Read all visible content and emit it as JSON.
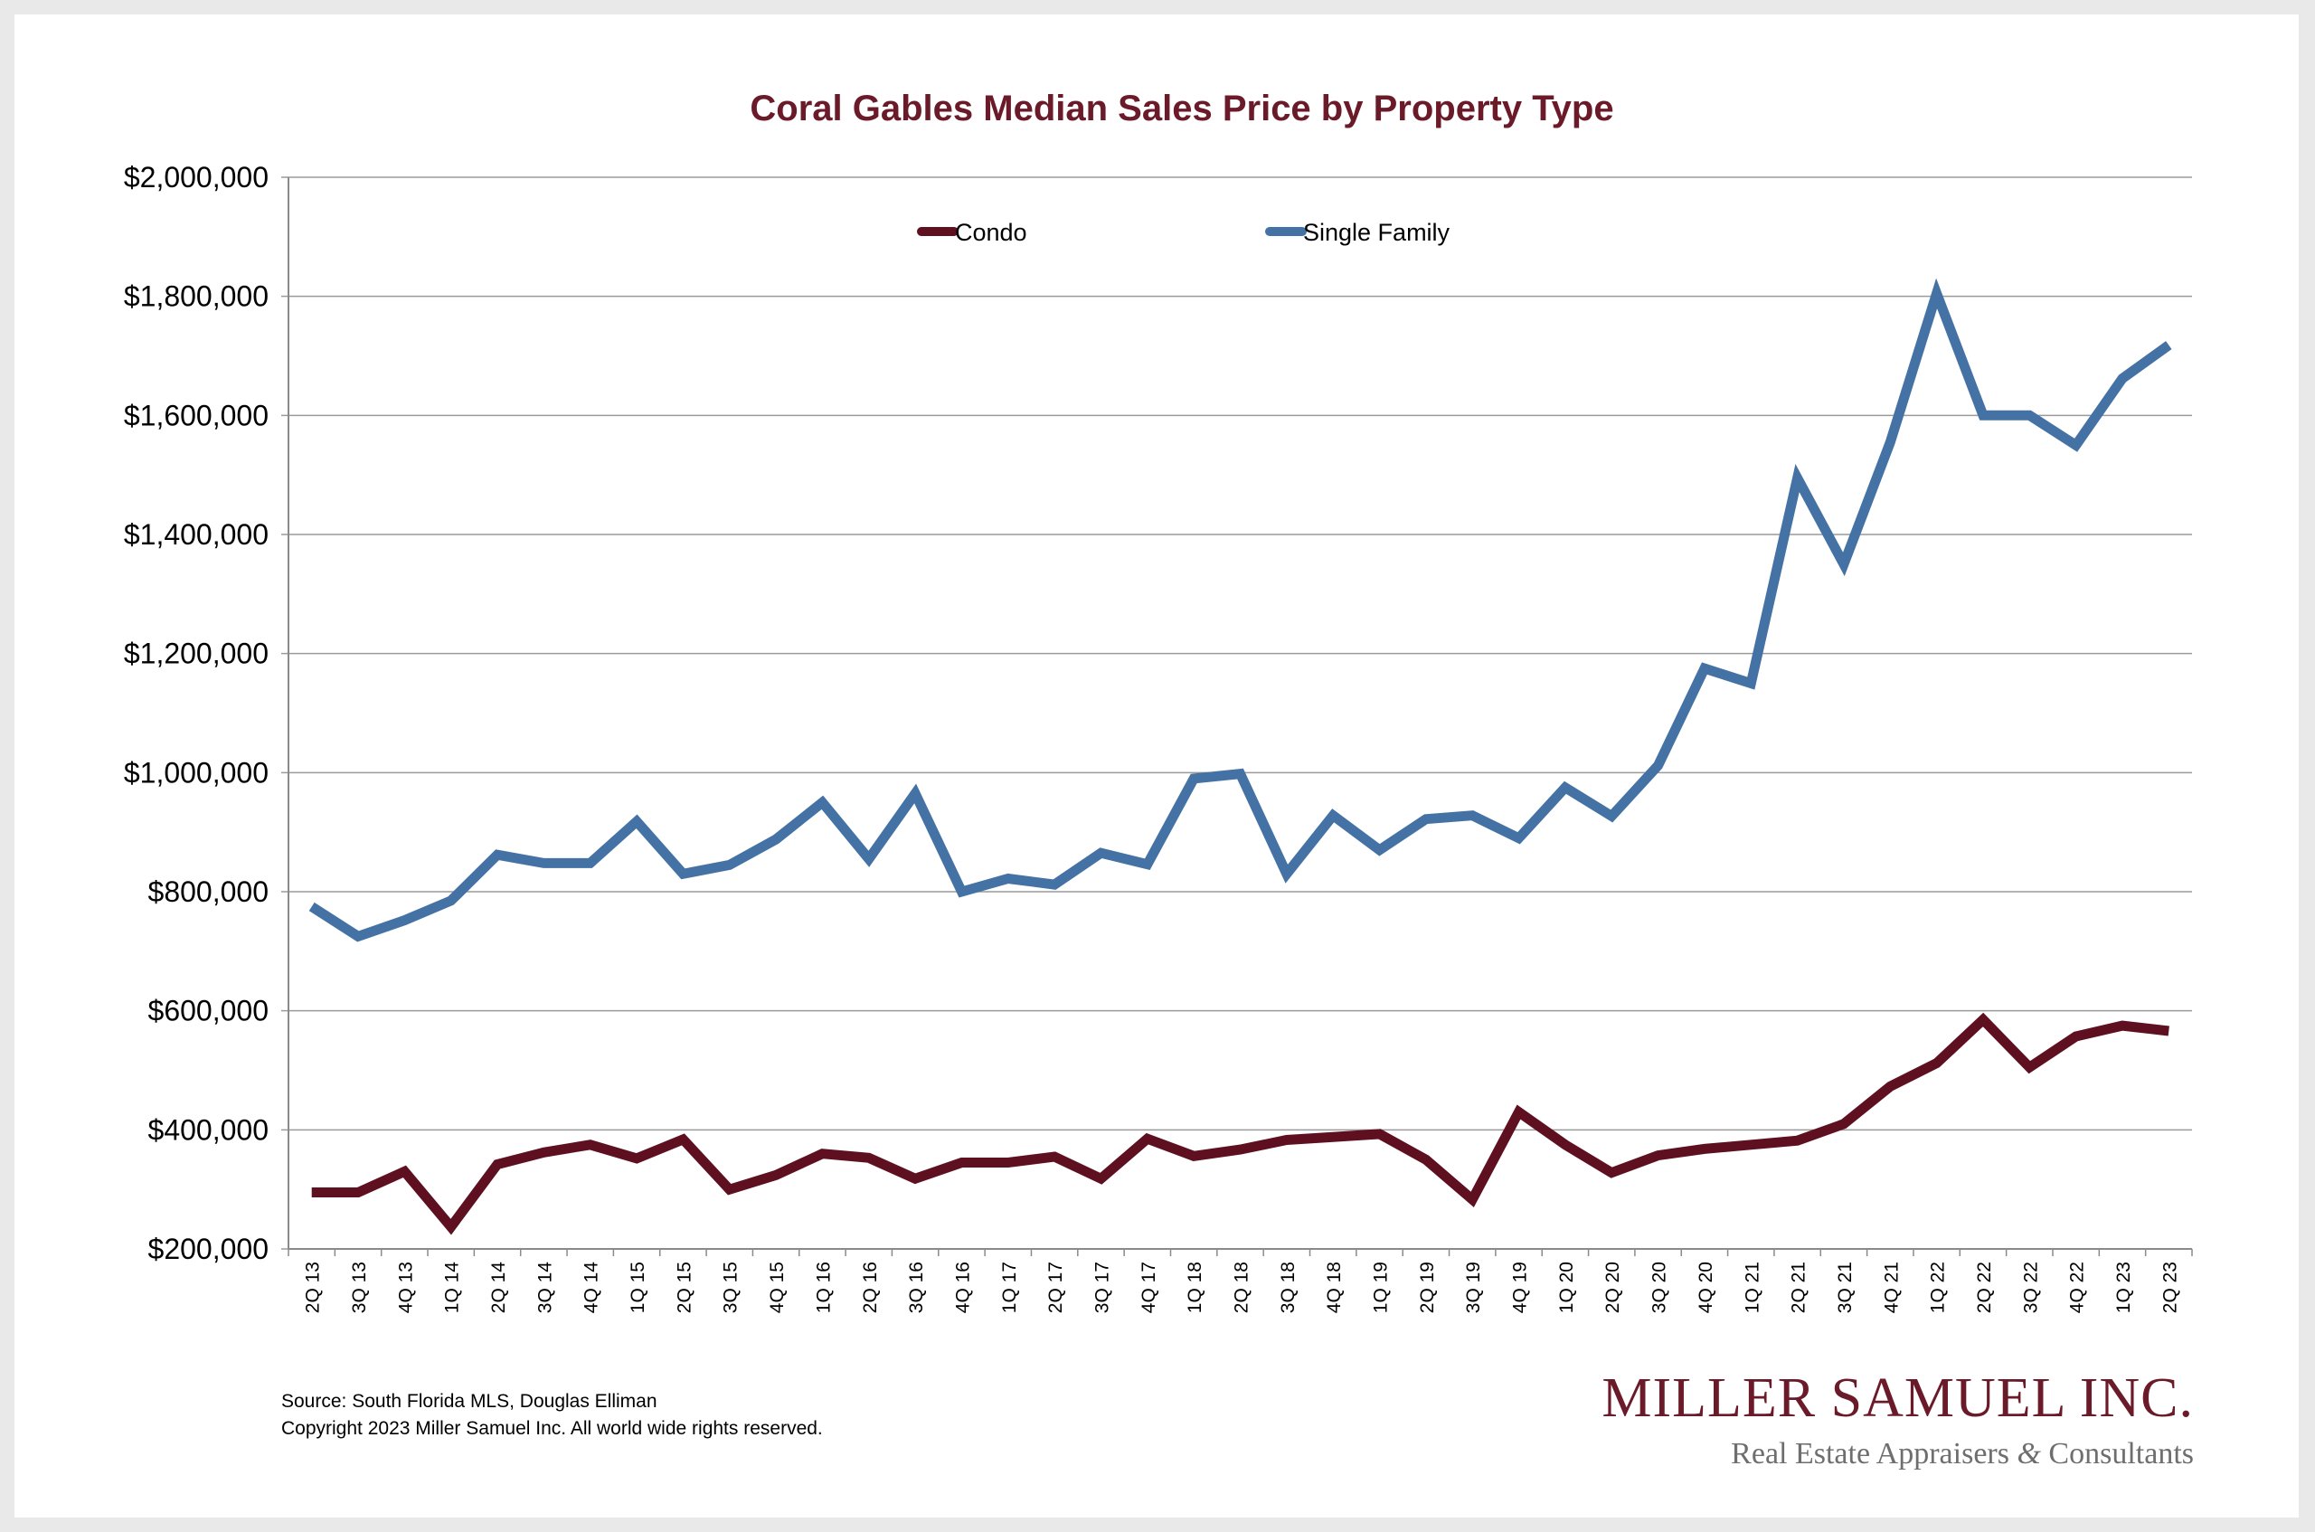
{
  "chart_data": {
    "type": "line",
    "title": "Coral Gables Median Sales Price by Property Type",
    "xlabel": "",
    "ylabel": "",
    "ylim": [
      200000,
      2000000
    ],
    "yticks": [
      200000,
      400000,
      600000,
      800000,
      1000000,
      1200000,
      1400000,
      1600000,
      1800000,
      2000000
    ],
    "ytick_labels": [
      "$200,000",
      "$400,000",
      "$600,000",
      "$800,000",
      "$1,000,000",
      "$1,200,000",
      "$1,400,000",
      "$1,600,000",
      "$1,800,000",
      "$2,000,000"
    ],
    "grid": true,
    "legend_position": "top-center",
    "categories": [
      "2Q 13",
      "3Q 13",
      "4Q 13",
      "1Q 14",
      "2Q 14",
      "3Q 14",
      "4Q 14",
      "1Q 15",
      "2Q 15",
      "3Q 15",
      "4Q 15",
      "1Q 16",
      "2Q 16",
      "3Q 16",
      "4Q 16",
      "1Q 17",
      "2Q 17",
      "3Q 17",
      "4Q 17",
      "1Q 18",
      "2Q 18",
      "3Q 18",
      "4Q 18",
      "1Q 19",
      "2Q 19",
      "3Q 19",
      "4Q 19",
      "1Q 20",
      "2Q 20",
      "3Q 20",
      "4Q 20",
      "1Q 21",
      "2Q 21",
      "3Q 21",
      "4Q 21",
      "1Q 22",
      "2Q 22",
      "3Q 22",
      "4Q 22",
      "1Q 23",
      "2Q 23"
    ],
    "series": [
      {
        "name": "Condo",
        "color": "#5e1020",
        "values": [
          295000,
          295000,
          330000,
          237000,
          342000,
          362000,
          375000,
          352000,
          384000,
          300000,
          324000,
          360000,
          353000,
          318000,
          345000,
          345000,
          355000,
          318000,
          385000,
          356000,
          367000,
          383000,
          388000,
          393000,
          350000,
          283000,
          430000,
          375000,
          328000,
          357000,
          368000,
          375000,
          382000,
          410000,
          473000,
          512000,
          585000,
          505000,
          557000,
          575000,
          566000
        ]
      },
      {
        "name": "Single Family",
        "color": "#4472a4",
        "values": [
          775000,
          725000,
          752000,
          785000,
          862000,
          848000,
          848000,
          918000,
          830000,
          845000,
          888000,
          950000,
          855000,
          965000,
          800000,
          822000,
          812000,
          865000,
          846000,
          990000,
          998000,
          830000,
          928000,
          870000,
          922000,
          928000,
          890000,
          975000,
          927000,
          1012000,
          1175000,
          1150000,
          1495000,
          1350000,
          1555000,
          1805000,
          1600000,
          1600000,
          1550000,
          1662000,
          1718000
        ]
      }
    ]
  },
  "footer": {
    "source": "Source: South Florida MLS, Douglas Elliman",
    "copyright": "Copyright 2023 Miller Samuel Inc.  All world wide rights reserved."
  },
  "brand": {
    "name": "Miller Samuel Inc.",
    "tagline": "Real Estate Appraisers & Consultants"
  }
}
